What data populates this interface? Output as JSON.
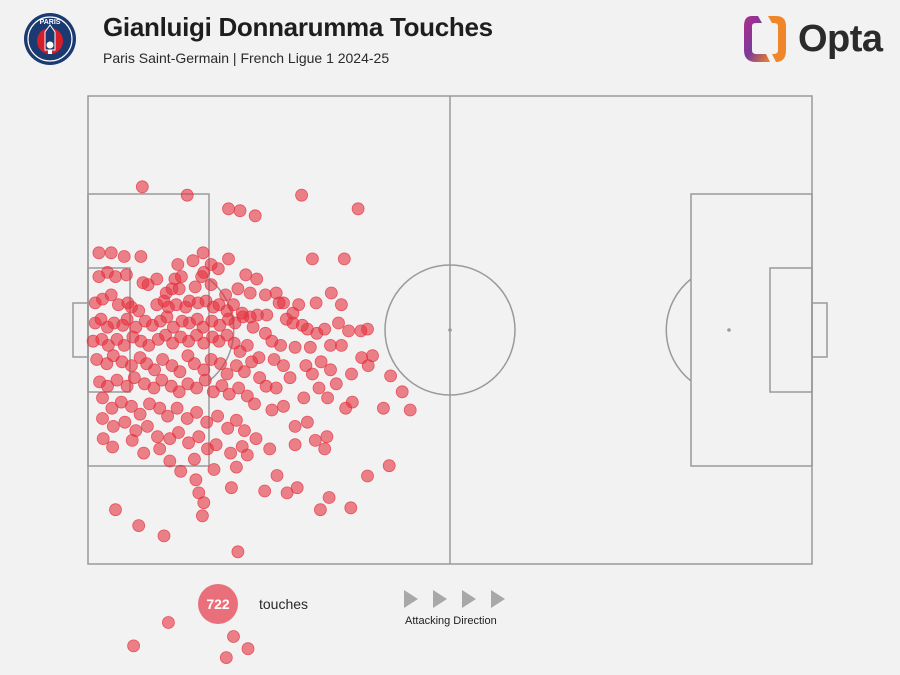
{
  "header": {
    "title": "Gianluigi Donnarumma Touches",
    "subtitle": "Paris Saint-Germain | French Ligue 1 2024-25",
    "club_badge_text": "PARIS",
    "brand": "Opta"
  },
  "legend": {
    "count": "722",
    "count_label": "touches",
    "direction_label": "Attacking Direction"
  },
  "colors": {
    "touch": "#e4323f",
    "pitch_line": "#9a9a9a",
    "badge_navy": "#1c3a72",
    "badge_red": "#d71e28",
    "brand_purple": "#7a3a9a",
    "brand_orange": "#f0862a",
    "arrow": "#a8a8a8"
  },
  "icons": {
    "club": "psg-crest-icon",
    "brand": "opta-logo-icon",
    "direction": "play-arrow-icon"
  },
  "chart_data": {
    "type": "scatter",
    "title": "Gianluigi Donnarumma Touches",
    "subtitle": "Paris Saint-Germain | French Ligue 1 2024-25",
    "x_axis": "pitch length, 0 = own goal line, 100 = opponent goal line",
    "y_axis": "pitch width, 0 = top touchline, 100 = bottom touchline",
    "xlim": [
      0,
      100
    ],
    "ylim": [
      0,
      100
    ],
    "total_touches": 722,
    "points": [
      [
        7.5,
        19.4
      ],
      [
        13.7,
        21.2
      ],
      [
        19.4,
        24.1
      ],
      [
        21.0,
        24.5
      ],
      [
        23.1,
        25.6
      ],
      [
        29.5,
        21.2
      ],
      [
        37.3,
        24.1
      ],
      [
        1.5,
        33.5
      ],
      [
        3.2,
        33.5
      ],
      [
        5.0,
        34.3
      ],
      [
        7.3,
        34.3
      ],
      [
        9.5,
        39.1
      ],
      [
        12.9,
        38.6
      ],
      [
        14.5,
        35.2
      ],
      [
        12.4,
        36.0
      ],
      [
        15.9,
        33.5
      ],
      [
        17.0,
        36.0
      ],
      [
        18.0,
        36.9
      ],
      [
        16.0,
        37.7
      ],
      [
        15.7,
        38.6
      ],
      [
        12.0,
        39.1
      ],
      [
        19.4,
        34.8
      ],
      [
        21.8,
        38.2
      ],
      [
        23.3,
        39.1
      ],
      [
        31.0,
        34.8
      ],
      [
        35.4,
        34.8
      ],
      [
        12.6,
        41.2
      ],
      [
        1.5,
        38.6
      ],
      [
        2.7,
        37.7
      ],
      [
        3.8,
        38.6
      ],
      [
        5.3,
        38.2
      ],
      [
        7.6,
        39.9
      ],
      [
        8.3,
        40.3
      ],
      [
        10.8,
        42.1
      ],
      [
        11.6,
        41.2
      ],
      [
        14.8,
        40.8
      ],
      [
        17.0,
        40.3
      ],
      [
        19.0,
        42.5
      ],
      [
        20.7,
        41.2
      ],
      [
        22.4,
        42.1
      ],
      [
        24.5,
        42.5
      ],
      [
        26.0,
        42.1
      ],
      [
        27.0,
        44.2
      ],
      [
        29.1,
        44.6
      ],
      [
        31.5,
        44.2
      ],
      [
        33.6,
        42.1
      ],
      [
        35.0,
        44.6
      ],
      [
        26.4,
        44.2
      ],
      [
        28.3,
        46.4
      ],
      [
        1.0,
        44.2
      ],
      [
        2.0,
        43.4
      ],
      [
        3.2,
        42.5
      ],
      [
        4.2,
        44.6
      ],
      [
        5.5,
        44.2
      ],
      [
        6.0,
        45.1
      ],
      [
        7.0,
        45.9
      ],
      [
        9.5,
        44.6
      ],
      [
        10.5,
        43.8
      ],
      [
        11.1,
        45.1
      ],
      [
        12.2,
        44.6
      ],
      [
        13.5,
        45.1
      ],
      [
        14.0,
        43.8
      ],
      [
        15.2,
        44.2
      ],
      [
        16.3,
        43.8
      ],
      [
        17.3,
        45.1
      ],
      [
        18.1,
        44.6
      ],
      [
        19.2,
        45.9
      ],
      [
        20.1,
        44.6
      ],
      [
        21.3,
        46.4
      ],
      [
        22.4,
        47.2
      ],
      [
        23.4,
        46.8
      ],
      [
        24.7,
        46.8
      ],
      [
        27.4,
        47.7
      ],
      [
        28.3,
        48.5
      ],
      [
        29.6,
        49.0
      ],
      [
        30.3,
        49.8
      ],
      [
        31.6,
        50.7
      ],
      [
        32.7,
        49.8
      ],
      [
        34.6,
        48.5
      ],
      [
        36.0,
        50.2
      ],
      [
        1.0,
        48.5
      ],
      [
        1.8,
        47.7
      ],
      [
        2.7,
        49.4
      ],
      [
        3.6,
        48.5
      ],
      [
        4.8,
        49.0
      ],
      [
        5.4,
        47.7
      ],
      [
        6.6,
        49.4
      ],
      [
        7.9,
        48.1
      ],
      [
        8.9,
        49.0
      ],
      [
        10.0,
        48.1
      ],
      [
        10.9,
        47.2
      ],
      [
        11.8,
        49.4
      ],
      [
        13.0,
        48.1
      ],
      [
        14.0,
        48.5
      ],
      [
        15.1,
        47.7
      ],
      [
        15.9,
        49.4
      ],
      [
        17.1,
        48.1
      ],
      [
        18.2,
        49.0
      ],
      [
        19.4,
        47.7
      ],
      [
        20.3,
        48.5
      ],
      [
        21.4,
        47.2
      ],
      [
        22.8,
        49.4
      ],
      [
        24.5,
        50.7
      ],
      [
        25.4,
        52.4
      ],
      [
        26.6,
        53.3
      ],
      [
        28.6,
        53.7
      ],
      [
        30.7,
        53.7
      ],
      [
        33.5,
        53.3
      ],
      [
        35.0,
        53.3
      ],
      [
        37.7,
        50.2
      ],
      [
        38.6,
        49.8
      ],
      [
        0.7,
        52.4
      ],
      [
        1.9,
        52.0
      ],
      [
        2.8,
        53.3
      ],
      [
        4.0,
        52.0
      ],
      [
        5.0,
        53.3
      ],
      [
        6.2,
        51.5
      ],
      [
        7.3,
        52.4
      ],
      [
        8.4,
        53.3
      ],
      [
        9.7,
        52.0
      ],
      [
        10.7,
        51.1
      ],
      [
        11.7,
        52.8
      ],
      [
        12.8,
        51.5
      ],
      [
        13.9,
        52.4
      ],
      [
        15.0,
        51.1
      ],
      [
        16.0,
        52.8
      ],
      [
        17.2,
        51.5
      ],
      [
        18.1,
        52.4
      ],
      [
        19.2,
        51.1
      ],
      [
        20.2,
        52.8
      ],
      [
        21.0,
        54.6
      ],
      [
        22.0,
        53.3
      ],
      [
        23.6,
        55.9
      ],
      [
        25.7,
        56.3
      ],
      [
        27.0,
        57.6
      ],
      [
        30.1,
        57.6
      ],
      [
        31.0,
        59.4
      ],
      [
        32.2,
        56.8
      ],
      [
        33.5,
        58.5
      ],
      [
        36.4,
        59.4
      ],
      [
        37.8,
        55.9
      ],
      [
        38.7,
        57.6
      ],
      [
        39.3,
        55.5
      ],
      [
        41.8,
        59.8
      ],
      [
        43.4,
        63.2
      ],
      [
        44.5,
        67.1
      ],
      [
        1.2,
        56.3
      ],
      [
        2.6,
        57.2
      ],
      [
        3.5,
        55.5
      ],
      [
        4.7,
        56.8
      ],
      [
        6.0,
        57.6
      ],
      [
        7.2,
        55.9
      ],
      [
        8.1,
        57.2
      ],
      [
        9.2,
        58.5
      ],
      [
        10.3,
        56.3
      ],
      [
        11.6,
        57.6
      ],
      [
        12.7,
        58.9
      ],
      [
        13.8,
        55.5
      ],
      [
        14.7,
        57.2
      ],
      [
        16.0,
        58.5
      ],
      [
        17.0,
        56.3
      ],
      [
        18.3,
        57.2
      ],
      [
        19.2,
        59.4
      ],
      [
        20.5,
        57.6
      ],
      [
        21.6,
        58.9
      ],
      [
        22.6,
        56.8
      ],
      [
        23.7,
        60.2
      ],
      [
        24.6,
        62.0
      ],
      [
        26.0,
        62.4
      ],
      [
        27.9,
        60.2
      ],
      [
        29.8,
        64.5
      ],
      [
        31.9,
        62.4
      ],
      [
        33.1,
        64.5
      ],
      [
        34.3,
        61.5
      ],
      [
        35.6,
        66.7
      ],
      [
        36.5,
        65.4
      ],
      [
        1.6,
        61.1
      ],
      [
        2.7,
        62.0
      ],
      [
        4.0,
        60.7
      ],
      [
        5.4,
        62.0
      ],
      [
        6.4,
        60.2
      ],
      [
        7.8,
        61.5
      ],
      [
        9.1,
        62.4
      ],
      [
        10.2,
        60.7
      ],
      [
        11.5,
        62.0
      ],
      [
        12.6,
        63.2
      ],
      [
        13.8,
        61.5
      ],
      [
        15.0,
        62.4
      ],
      [
        16.2,
        60.7
      ],
      [
        17.3,
        63.2
      ],
      [
        18.5,
        61.9
      ],
      [
        19.5,
        63.7
      ],
      [
        20.8,
        62.4
      ],
      [
        22.0,
        64.1
      ],
      [
        23.0,
        65.8
      ],
      [
        25.4,
        67.1
      ],
      [
        27.0,
        66.3
      ],
      [
        28.6,
        70.6
      ],
      [
        30.3,
        69.7
      ],
      [
        31.4,
        73.6
      ],
      [
        33.0,
        72.8
      ],
      [
        2.0,
        64.5
      ],
      [
        3.3,
        66.7
      ],
      [
        4.6,
        65.4
      ],
      [
        6.0,
        66.3
      ],
      [
        7.2,
        68.0
      ],
      [
        8.5,
        65.8
      ],
      [
        9.9,
        66.7
      ],
      [
        11.0,
        68.4
      ],
      [
        12.3,
        66.7
      ],
      [
        13.7,
        68.9
      ],
      [
        15.0,
        67.6
      ],
      [
        16.4,
        69.7
      ],
      [
        17.9,
        68.4
      ],
      [
        19.3,
        71.0
      ],
      [
        20.5,
        69.3
      ],
      [
        21.6,
        71.5
      ],
      [
        23.2,
        73.2
      ],
      [
        25.1,
        75.4
      ],
      [
        28.6,
        74.5
      ],
      [
        32.7,
        75.4
      ],
      [
        2.0,
        68.9
      ],
      [
        3.5,
        70.6
      ],
      [
        5.1,
        69.7
      ],
      [
        6.6,
        71.5
      ],
      [
        8.2,
        70.6
      ],
      [
        9.6,
        72.8
      ],
      [
        11.3,
        73.2
      ],
      [
        12.5,
        71.9
      ],
      [
        13.9,
        74.1
      ],
      [
        15.3,
        72.8
      ],
      [
        16.5,
        75.4
      ],
      [
        17.7,
        74.5
      ],
      [
        19.7,
        76.3
      ],
      [
        21.3,
        74.9
      ],
      [
        22.0,
        76.7
      ],
      [
        14.7,
        77.6
      ],
      [
        17.4,
        79.8
      ],
      [
        20.5,
        79.3
      ],
      [
        2.1,
        73.2
      ],
      [
        3.4,
        75.0
      ],
      [
        6.1,
        73.6
      ],
      [
        7.7,
        76.3
      ],
      [
        9.9,
        75.4
      ],
      [
        11.3,
        78.0
      ],
      [
        12.8,
        80.2
      ],
      [
        14.9,
        82.0
      ],
      [
        19.8,
        83.7
      ],
      [
        15.3,
        84.8
      ],
      [
        16.0,
        86.9
      ],
      [
        24.4,
        84.4
      ],
      [
        26.1,
        81.1
      ],
      [
        28.9,
        83.7
      ],
      [
        33.3,
        85.8
      ],
      [
        36.3,
        88.0
      ],
      [
        15.8,
        89.7
      ],
      [
        10.5,
        94.0
      ],
      [
        7.0,
        91.8
      ],
      [
        3.8,
        88.4
      ],
      [
        20.7,
        97.4
      ],
      [
        11.1,
        112.5
      ],
      [
        6.3,
        117.5
      ],
      [
        20.1,
        115.5
      ],
      [
        19.1,
        120.0
      ],
      [
        22.1,
        118.1
      ],
      [
        32.1,
        88.4
      ],
      [
        27.5,
        84.8
      ],
      [
        38.6,
        81.2
      ],
      [
        41.6,
        79.0
      ],
      [
        40.8,
        66.7
      ]
    ]
  }
}
